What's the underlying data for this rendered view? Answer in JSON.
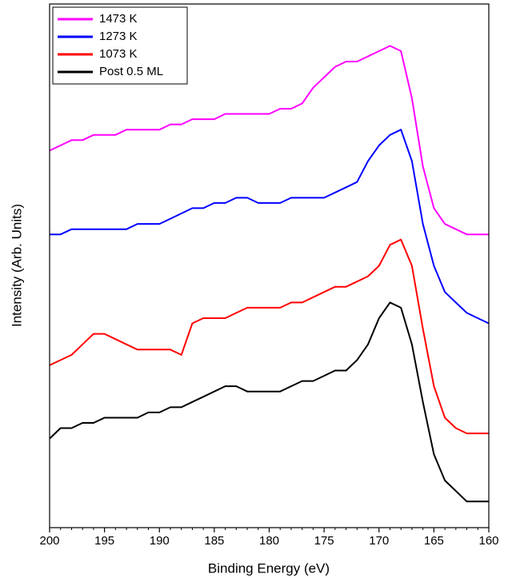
{
  "chart_data": {
    "type": "line",
    "xlabel": "Binding Energy (eV)",
    "ylabel": "Intensity (Arb. Units)",
    "xlim": [
      200,
      160
    ],
    "xticks": [
      200,
      195,
      190,
      185,
      180,
      175,
      170,
      165,
      160
    ],
    "ylim": [
      0,
      100
    ],
    "legend": "upper left",
    "x": [
      200,
      199,
      198,
      197,
      196,
      195,
      194,
      193,
      192,
      191,
      190,
      189,
      188,
      187,
      186,
      185,
      184,
      183,
      182,
      181,
      180,
      179,
      178,
      177,
      176,
      175,
      174,
      173,
      172,
      171,
      170,
      169,
      168,
      167,
      166,
      165,
      164,
      163,
      162,
      161,
      160
    ],
    "series": [
      {
        "name": "1473 K",
        "color": "#ff00ff",
        "values": [
          72,
          73,
          74,
          74,
          75,
          75,
          75,
          76,
          76,
          76,
          76,
          77,
          77,
          78,
          78,
          78,
          79,
          79,
          79,
          79,
          79,
          80,
          80,
          81,
          84,
          86,
          88,
          89,
          89,
          90,
          91,
          92,
          91,
          82,
          69,
          61,
          58,
          57,
          56,
          56,
          56
        ]
      },
      {
        "name": "1273 K",
        "color": "#0000ff",
        "values": [
          56,
          56,
          57,
          57,
          57,
          57,
          57,
          57,
          58,
          58,
          58,
          59,
          60,
          61,
          61,
          62,
          62,
          63,
          63,
          62,
          62,
          62,
          63,
          63,
          63,
          63,
          64,
          65,
          66,
          70,
          73,
          75,
          76,
          70,
          58,
          50,
          45,
          43,
          41,
          40,
          39
        ]
      },
      {
        "name": "1073 K",
        "color": "#ff0000",
        "values": [
          31,
          32,
          33,
          35,
          37,
          37,
          36,
          35,
          34,
          34,
          34,
          34,
          33,
          39,
          40,
          40,
          40,
          41,
          42,
          42,
          42,
          42,
          43,
          43,
          44,
          45,
          46,
          46,
          47,
          48,
          50,
          54,
          55,
          50,
          38,
          27,
          21,
          19,
          18,
          18,
          18
        ]
      },
      {
        "name": "Post 0.5 ML",
        "color": "#000000",
        "values": [
          17,
          19,
          19,
          20,
          20,
          21,
          21,
          21,
          21,
          22,
          22,
          23,
          23,
          24,
          25,
          26,
          27,
          27,
          26,
          26,
          26,
          26,
          27,
          28,
          28,
          29,
          30,
          30,
          32,
          35,
          40,
          43,
          42,
          35,
          24,
          14,
          9,
          7,
          5,
          5,
          5
        ]
      }
    ]
  }
}
